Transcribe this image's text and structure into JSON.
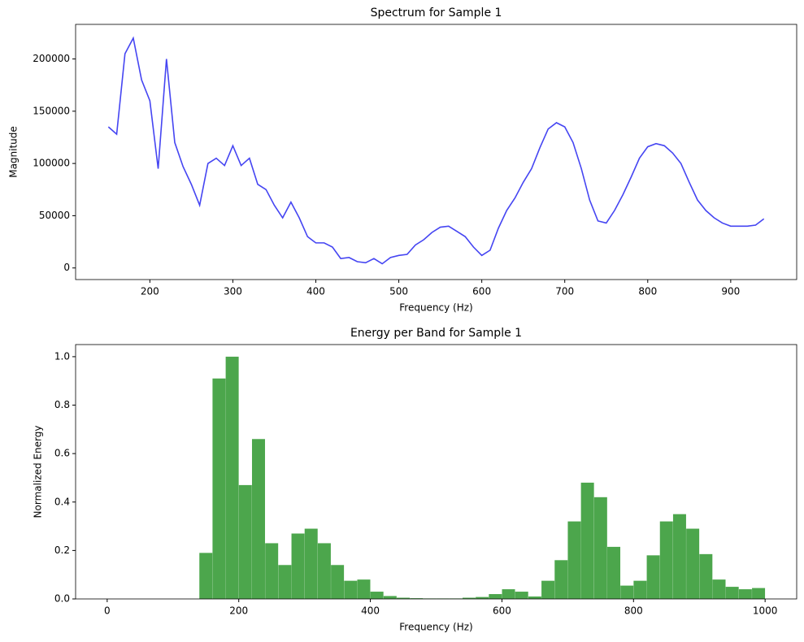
{
  "chart_data": [
    {
      "type": "line",
      "title": "Spectrum for Sample 1",
      "xlabel": "Frequency (Hz)",
      "ylabel": "Magnitude",
      "x": [
        150,
        160,
        170,
        180,
        190,
        200,
        210,
        220,
        230,
        240,
        250,
        260,
        270,
        280,
        290,
        300,
        310,
        320,
        330,
        340,
        350,
        360,
        370,
        380,
        390,
        400,
        410,
        420,
        430,
        440,
        450,
        460,
        470,
        480,
        490,
        500,
        510,
        520,
        530,
        540,
        550,
        560,
        570,
        580,
        590,
        600,
        610,
        620,
        630,
        640,
        650,
        660,
        670,
        680,
        690,
        700,
        710,
        720,
        730,
        740,
        750,
        760,
        770,
        780,
        790,
        800,
        810,
        820,
        830,
        840,
        850,
        860,
        870,
        880,
        890,
        900,
        910,
        920,
        930,
        940
      ],
      "series": [
        {
          "name": "Spectrum",
          "color": "#4545f2",
          "values": [
            135000,
            128000,
            205000,
            220000,
            180000,
            160000,
            95000,
            200000,
            120000,
            97000,
            80000,
            60000,
            100000,
            105000,
            98000,
            117000,
            98000,
            105000,
            80000,
            75000,
            60000,
            48000,
            63000,
            48000,
            30000,
            24000,
            24000,
            20000,
            9000,
            10000,
            6000,
            5000,
            9000,
            4000,
            10000,
            12000,
            13000,
            22000,
            27000,
            34000,
            39000,
            40000,
            35000,
            30000,
            20000,
            12000,
            17000,
            38000,
            55000,
            67000,
            82000,
            95000,
            115000,
            133000,
            139000,
            135000,
            120000,
            95000,
            65000,
            45000,
            43000,
            55000,
            70000,
            87000,
            105000,
            116000,
            119000,
            117000,
            110000,
            100000,
            82000,
            65000,
            55000,
            48000,
            43000,
            40000,
            40000,
            40000,
            41000,
            47000
          ]
        }
      ],
      "xlim": [
        110.5,
        979.5
      ],
      "xticks": [
        200,
        300,
        400,
        500,
        600,
        700,
        800,
        900
      ],
      "ylim": [
        -11100,
        233100
      ],
      "yticks": [
        0,
        50000,
        100000,
        150000,
        200000
      ]
    },
    {
      "type": "bar",
      "title": "Energy per Band for Sample 1",
      "xlabel": "Frequency (Hz)",
      "ylabel": "Normalized Energy",
      "x": [
        10,
        30,
        50,
        70,
        90,
        110,
        130,
        150,
        170,
        190,
        210,
        230,
        250,
        270,
        290,
        310,
        330,
        350,
        370,
        390,
        410,
        430,
        450,
        470,
        490,
        510,
        530,
        550,
        570,
        590,
        610,
        630,
        650,
        670,
        690,
        710,
        730,
        750,
        770,
        790,
        810,
        830,
        850,
        870,
        890,
        910,
        930,
        950,
        970,
        990
      ],
      "series": [
        {
          "name": "Energy",
          "color": "#4ca64c",
          "values": [
            0,
            0,
            0,
            0,
            0,
            0,
            0,
            0.19,
            0.91,
            1.0,
            0.47,
            0.66,
            0.23,
            0.14,
            0.27,
            0.29,
            0.23,
            0.14,
            0.075,
            0.08,
            0.03,
            0.012,
            0.005,
            0.003,
            0.002,
            0.002,
            0.002,
            0.005,
            0.008,
            0.02,
            0.04,
            0.03,
            0.01,
            0.075,
            0.16,
            0.32,
            0.48,
            0.42,
            0.215,
            0.055,
            0.075,
            0.18,
            0.32,
            0.35,
            0.29,
            0.185,
            0.08,
            0.05,
            0.04,
            0.045
          ]
        }
      ],
      "bar_width": 16,
      "xlim": [
        -48,
        1048
      ],
      "xticks": [
        0,
        200,
        400,
        600,
        800,
        1000
      ],
      "ylim": [
        0,
        1.05
      ],
      "yticks": [
        {
          "value": 0,
          "label": "0.0"
        },
        {
          "value": 0.2,
          "label": "0.2"
        },
        {
          "value": 0.4,
          "label": "0.4"
        },
        {
          "value": 0.6,
          "label": "0.6"
        },
        {
          "value": 0.8,
          "label": "0.8"
        },
        {
          "value": 1.0,
          "label": "1.0"
        }
      ]
    }
  ]
}
